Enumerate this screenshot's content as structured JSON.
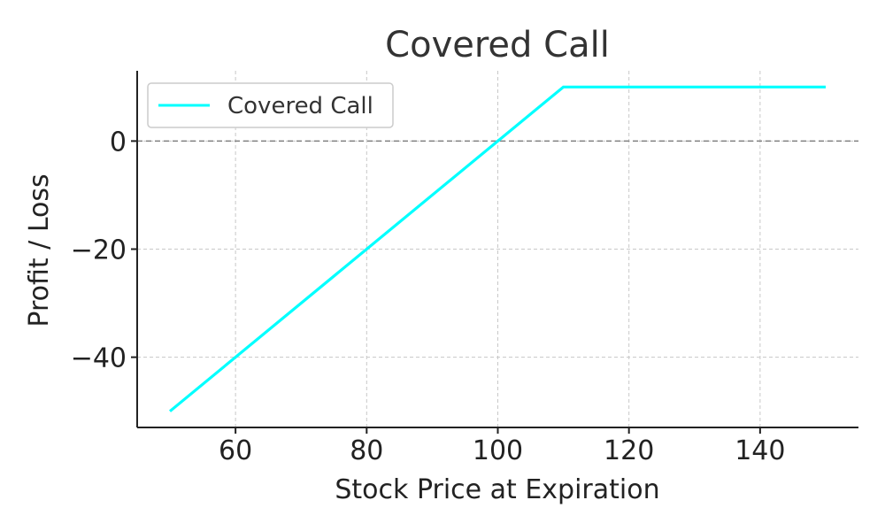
{
  "chart_data": {
    "type": "line",
    "title": "Covered Call",
    "xlabel": "Stock Price at Expiration",
    "ylabel": "Profit / Loss",
    "xlim": [
      45,
      155
    ],
    "ylim": [
      -53,
      13
    ],
    "xticks": [
      60,
      80,
      100,
      120,
      140
    ],
    "yticks": [
      0,
      -20,
      -40
    ],
    "ytick_labels": [
      "0",
      "−20",
      "−40"
    ],
    "grid": true,
    "zero_line": 0,
    "legend_position": "top-left",
    "series": [
      {
        "name": "Covered Call",
        "color": "#00ffff",
        "x": [
          50,
          110,
          150
        ],
        "y": [
          -50,
          10,
          10
        ]
      }
    ]
  }
}
